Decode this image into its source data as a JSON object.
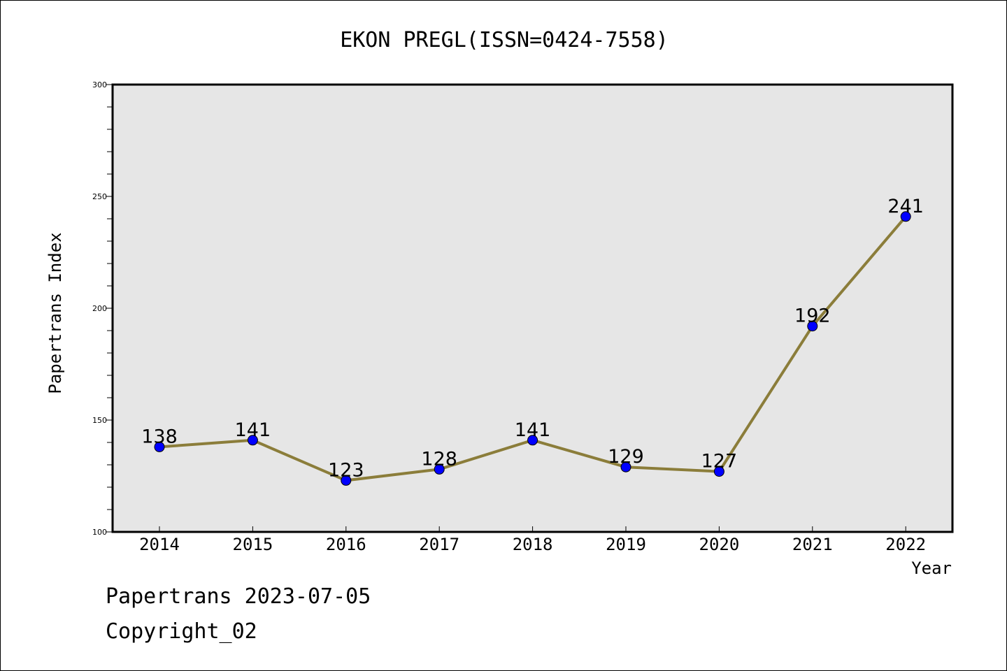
{
  "chart_data": {
    "type": "line",
    "title": "EKON PREGL(ISSN=0424-7558)",
    "xlabel": "Year",
    "ylabel": "Papertrans Index",
    "categories": [
      "2014",
      "2015",
      "2016",
      "2017",
      "2018",
      "2019",
      "2020",
      "2021",
      "2022"
    ],
    "series": [
      {
        "values": [
          138,
          141,
          123,
          128,
          141,
          129,
          127,
          192,
          241
        ]
      }
    ],
    "data_labels": [
      "138",
      "141",
      "123",
      "128",
      "141",
      "129",
      "127",
      "192",
      "241"
    ],
    "ylim": [
      100,
      300
    ],
    "yticks": [
      "100",
      "150",
      "200",
      "250",
      "300"
    ],
    "grid": false,
    "colors": {
      "line": "#8b7d3a",
      "marker": "#0000ff",
      "plot_background": "#e6e6e6"
    }
  },
  "footer": {
    "source": "Papertrans 2023-07-05",
    "copyright": "Copyright_02"
  }
}
